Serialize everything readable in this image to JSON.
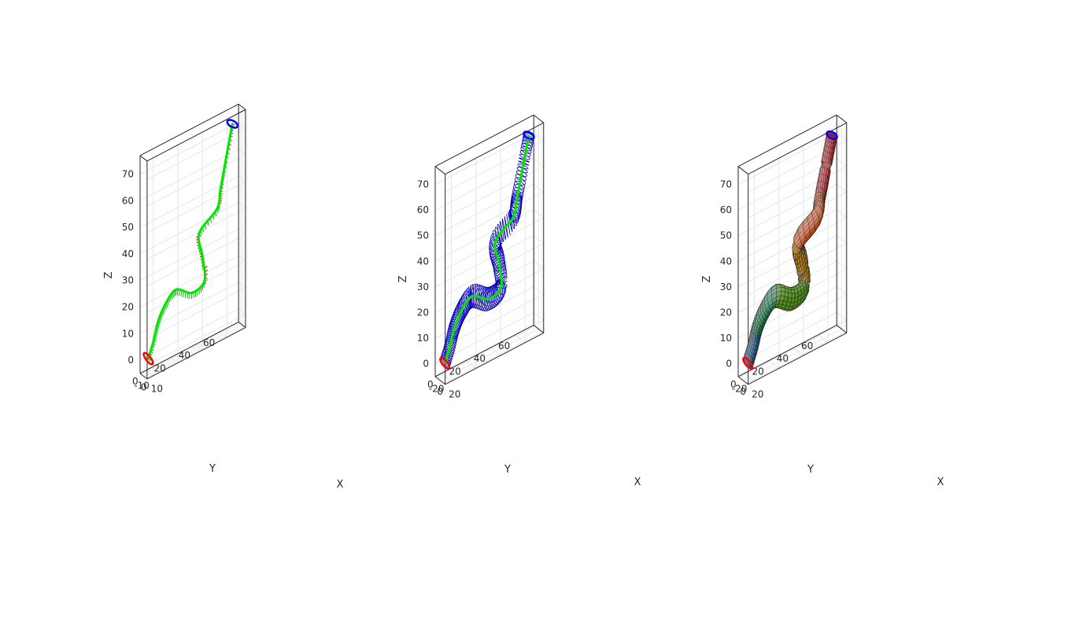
{
  "chart_data": [
    {
      "type": "line3d",
      "style": "curve-with-frame-vectors",
      "title": "",
      "xlabel": "X",
      "ylabel": "Y",
      "zlabel": "Z",
      "xticks": [
        "-10",
        "0",
        "10"
      ],
      "yticks": [
        "0",
        "20",
        "40",
        "60"
      ],
      "zticks": [
        "0",
        "10",
        "20",
        "30",
        "40",
        "50",
        "60",
        "70"
      ],
      "xlim": [
        -18,
        16
      ],
      "ylim": [
        -5,
        75
      ],
      "zlim": [
        -5,
        77
      ],
      "curve": {
        "name": "",
        "color": "#00e600"
      },
      "vectors": {
        "colors": [
          "#ff0000",
          "#00c000"
        ]
      },
      "end_caps": {
        "start_color": "#ff0000",
        "end_color": "#0000ff"
      }
    },
    {
      "type": "line3d",
      "style": "curve-with-ring-cross-sections",
      "title": "",
      "xlabel": "X",
      "ylabel": "Y",
      "zlabel": "Z",
      "xticks": [
        "-20",
        "0",
        "20"
      ],
      "yticks": [
        "0",
        "20",
        "40",
        "60"
      ],
      "zticks": [
        "0",
        "10",
        "20",
        "30",
        "40",
        "50",
        "60",
        "70"
      ],
      "xlim": [
        -27,
        28
      ],
      "ylim": [
        -5,
        75
      ],
      "zlim": [
        -5,
        77
      ],
      "curve": {
        "name": "",
        "color": "#00e600"
      },
      "rings": {
        "color": "#0000b4"
      },
      "end_caps": {
        "start_color": "#ff0000",
        "end_color": "#0000ff"
      }
    },
    {
      "type": "surface3d",
      "style": "tube-surface",
      "title": "",
      "xlabel": "X",
      "ylabel": "Y",
      "zlabel": "Z",
      "xticks": [
        "-20",
        "0",
        "20"
      ],
      "yticks": [
        "0",
        "20",
        "40",
        "60"
      ],
      "zticks": [
        "0",
        "10",
        "20",
        "30",
        "40",
        "50",
        "60",
        "70"
      ],
      "xlim": [
        -27,
        28
      ],
      "ylim": [
        -5,
        75
      ],
      "zlim": [
        -5,
        77
      ],
      "colormap": [
        "#1f5a87",
        "#1e7a4a",
        "#4f8a1a",
        "#b07a10",
        "#c4501e",
        "#c02a2a"
      ],
      "end_caps": {
        "start_color": "#ff0000",
        "end_color": "#0000ff"
      }
    }
  ]
}
